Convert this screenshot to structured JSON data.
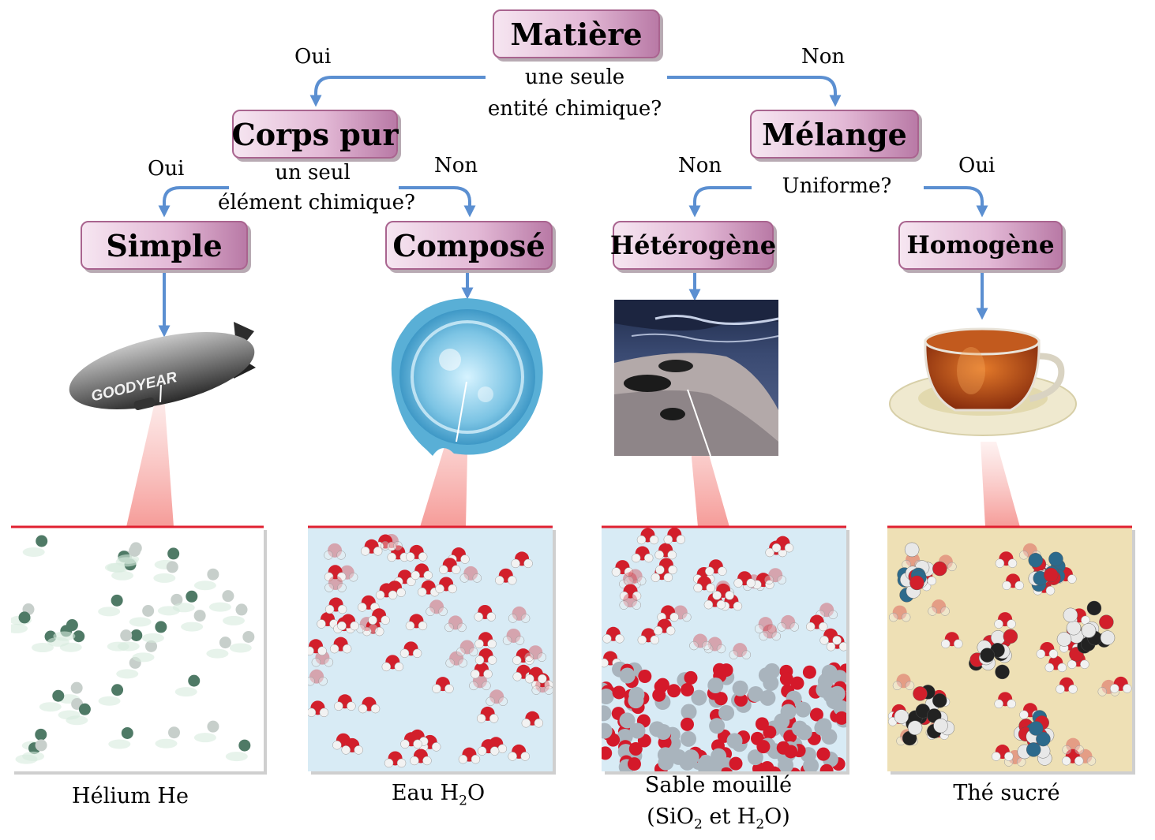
{
  "root": {
    "title": "Matière",
    "question_line1": "une seule",
    "question_line2": "entité chimique?",
    "yes": "Oui",
    "no": "Non"
  },
  "corps_pur": {
    "title": "Corps pur",
    "question_line1": "un seul",
    "question_line2": "élément chimique?",
    "yes": "Oui",
    "no": "Non"
  },
  "melange": {
    "title": "Mélange",
    "question": "Uniforme?",
    "no": "Non",
    "yes": "Oui"
  },
  "leaves": [
    {
      "title": "Simple",
      "caption": "Hélium He"
    },
    {
      "title": "Composé",
      "caption_pre": "Eau H",
      "caption_sub": "2",
      "caption_post": "O"
    },
    {
      "title": "Hétérogène",
      "caption_line1": "Sable mouillé",
      "caption_line2_a": "(SiO",
      "caption_line2_sub1": "2",
      "caption_line2_b": " et H",
      "caption_line2_sub2": "2",
      "caption_line2_c": "O)"
    },
    {
      "title": "Homogène",
      "caption": "Thé sucré"
    }
  ],
  "icons": {
    "blimp": "blimp-icon",
    "water": "water-splash-icon",
    "beach": "wet-sand-beach-icon",
    "tea": "tea-cup-icon"
  },
  "blimp_text": "GOODYEAR",
  "colors": {
    "arrow": "#5b8fd1",
    "box_border": "#a9648f",
    "zoom_line": "#e02030",
    "water_bg": "#d8ebf5",
    "tea_bg": "#eee0b5"
  }
}
